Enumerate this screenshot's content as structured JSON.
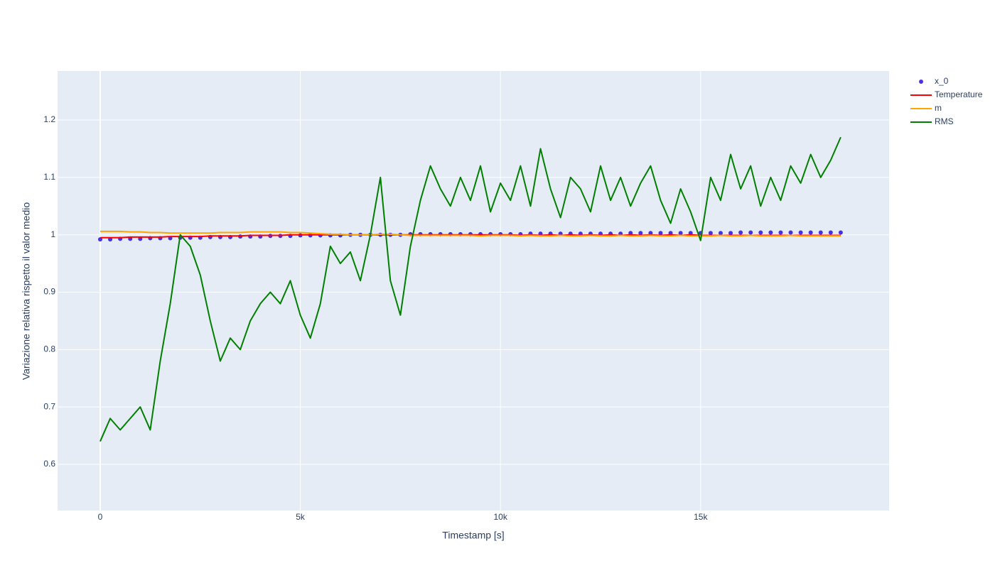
{
  "chart_data": {
    "type": "line",
    "x_label": "Timestamp [s]",
    "y_label": "Variazione relativa rispetto il valor medio",
    "xlim": [
      -1065,
      19709
    ],
    "ylim": [
      0.5196,
      1.2854
    ],
    "xticks": [
      0,
      {
        "value": 5000,
        "label": "5k"
      },
      {
        "value": 10000,
        "label": "10k"
      },
      {
        "value": 15000,
        "label": "15k"
      }
    ],
    "yticks": [
      0.6,
      0.7,
      0.8,
      0.9,
      1,
      1.1,
      1.2
    ],
    "grid": true,
    "legend": "right",
    "x": [
      0,
      250,
      500,
      750,
      1000,
      1250,
      1500,
      1750,
      2000,
      2250,
      2500,
      2750,
      3000,
      3250,
      3500,
      3750,
      4000,
      4250,
      4500,
      4750,
      5000,
      5250,
      5500,
      5750,
      6000,
      6250,
      6500,
      6750,
      7000,
      7250,
      7500,
      7750,
      8000,
      8250,
      8500,
      8750,
      9000,
      9250,
      9500,
      9750,
      10000,
      10250,
      10500,
      10750,
      11000,
      11250,
      11500,
      11750,
      12000,
      12250,
      12500,
      12750,
      13000,
      13250,
      13500,
      13750,
      14000,
      14250,
      14500,
      14750,
      15000,
      15250,
      15500,
      15750,
      16000,
      16250,
      16500,
      16750,
      17000,
      17250,
      17500,
      17750,
      18000,
      18250,
      18500
    ],
    "series": [
      {
        "name": "x_0",
        "mode": "markers",
        "color": "#1f00e0",
        "values": [
          0.992,
          0.992,
          0.993,
          0.993,
          0.993,
          0.994,
          0.994,
          0.994,
          0.995,
          0.995,
          0.995,
          0.996,
          0.996,
          0.996,
          0.997,
          0.997,
          0.997,
          0.998,
          0.998,
          0.998,
          0.999,
          0.999,
          0.999,
          0.999,
          0.999,
          1.0,
          1.0,
          1.0,
          1.0,
          1.0,
          1.0,
          1.001,
          1.001,
          1.001,
          1.001,
          1.001,
          1.001,
          1.001,
          1.001,
          1.001,
          1.001,
          1.001,
          1.001,
          1.002,
          1.002,
          1.002,
          1.002,
          1.002,
          1.002,
          1.002,
          1.002,
          1.002,
          1.002,
          1.003,
          1.003,
          1.003,
          1.003,
          1.003,
          1.003,
          1.003,
          1.003,
          1.003,
          1.003,
          1.003,
          1.004,
          1.004,
          1.004,
          1.004,
          1.004,
          1.004,
          1.004,
          1.004,
          1.004,
          1.004,
          1.004
        ]
      },
      {
        "name": "Temperature",
        "mode": "lines",
        "color": "#ff0000",
        "values": [
          0.995,
          0.995,
          0.995,
          0.996,
          0.996,
          0.996,
          0.996,
          0.997,
          0.997,
          0.997,
          0.997,
          0.998,
          0.998,
          0.998,
          0.998,
          0.999,
          0.999,
          0.999,
          0.999,
          1.0,
          1.0,
          1.0,
          1.0,
          1.0,
          1.0,
          1.0,
          1.0,
          1.0,
          1.0,
          1.0,
          1.0,
          1.0,
          1.0,
          1.0,
          1.0,
          1.0,
          1.0,
          1.0,
          1.0,
          1.0,
          1.0,
          1.0,
          0.999,
          1.0,
          0.999,
          1.0,
          0.999,
          1.0,
          0.999,
          1.0,
          0.999,
          1.0,
          0.999,
          1.0,
          0.999,
          1.0,
          0.999,
          1.0,
          0.999,
          1.0,
          0.999,
          0.999,
          0.999,
          0.999,
          0.999,
          0.999,
          0.999,
          0.999,
          0.999,
          0.999,
          0.999,
          0.999,
          0.999,
          0.999,
          0.999
        ]
      },
      {
        "name": "m",
        "mode": "lines",
        "color": "#ffa500",
        "values": [
          1.006,
          1.006,
          1.006,
          1.005,
          1.005,
          1.004,
          1.004,
          1.003,
          1.003,
          1.003,
          1.003,
          1.003,
          1.004,
          1.004,
          1.004,
          1.005,
          1.005,
          1.005,
          1.005,
          1.004,
          1.004,
          1.003,
          1.002,
          1.001,
          1.001,
          1.0,
          1.0,
          1.0,
          1.001,
          1.001,
          1.0,
          0.999,
          0.999,
          0.999,
          0.999,
          0.999,
          0.999,
          0.999,
          0.998,
          0.999,
          0.999,
          0.999,
          0.998,
          0.999,
          0.998,
          0.998,
          0.999,
          0.998,
          0.998,
          0.999,
          0.998,
          0.998,
          0.999,
          0.998,
          0.998,
          0.999,
          0.998,
          0.998,
          0.999,
          0.998,
          0.998,
          0.998,
          0.999,
          0.998,
          0.998,
          0.999,
          0.998,
          0.998,
          0.998,
          0.999,
          0.998,
          0.998,
          0.998,
          0.998,
          0.998
        ]
      },
      {
        "name": "RMS",
        "mode": "lines",
        "color": "#008000",
        "values": [
          0.64,
          0.68,
          0.66,
          0.68,
          0.7,
          0.66,
          0.78,
          0.88,
          1.0,
          0.98,
          0.93,
          0.85,
          0.78,
          0.82,
          0.8,
          0.85,
          0.88,
          0.9,
          0.88,
          0.92,
          0.86,
          0.82,
          0.88,
          0.98,
          0.95,
          0.97,
          0.92,
          1.0,
          1.1,
          0.92,
          0.86,
          0.98,
          1.06,
          1.12,
          1.08,
          1.05,
          1.1,
          1.06,
          1.12,
          1.04,
          1.09,
          1.06,
          1.12,
          1.05,
          1.15,
          1.08,
          1.03,
          1.1,
          1.08,
          1.04,
          1.12,
          1.06,
          1.1,
          1.05,
          1.09,
          1.12,
          1.06,
          1.02,
          1.08,
          1.04,
          0.99,
          1.1,
          1.06,
          1.14,
          1.08,
          1.12,
          1.05,
          1.1,
          1.06,
          1.12,
          1.09,
          1.14,
          1.1,
          1.13,
          1.17
        ]
      }
    ]
  }
}
